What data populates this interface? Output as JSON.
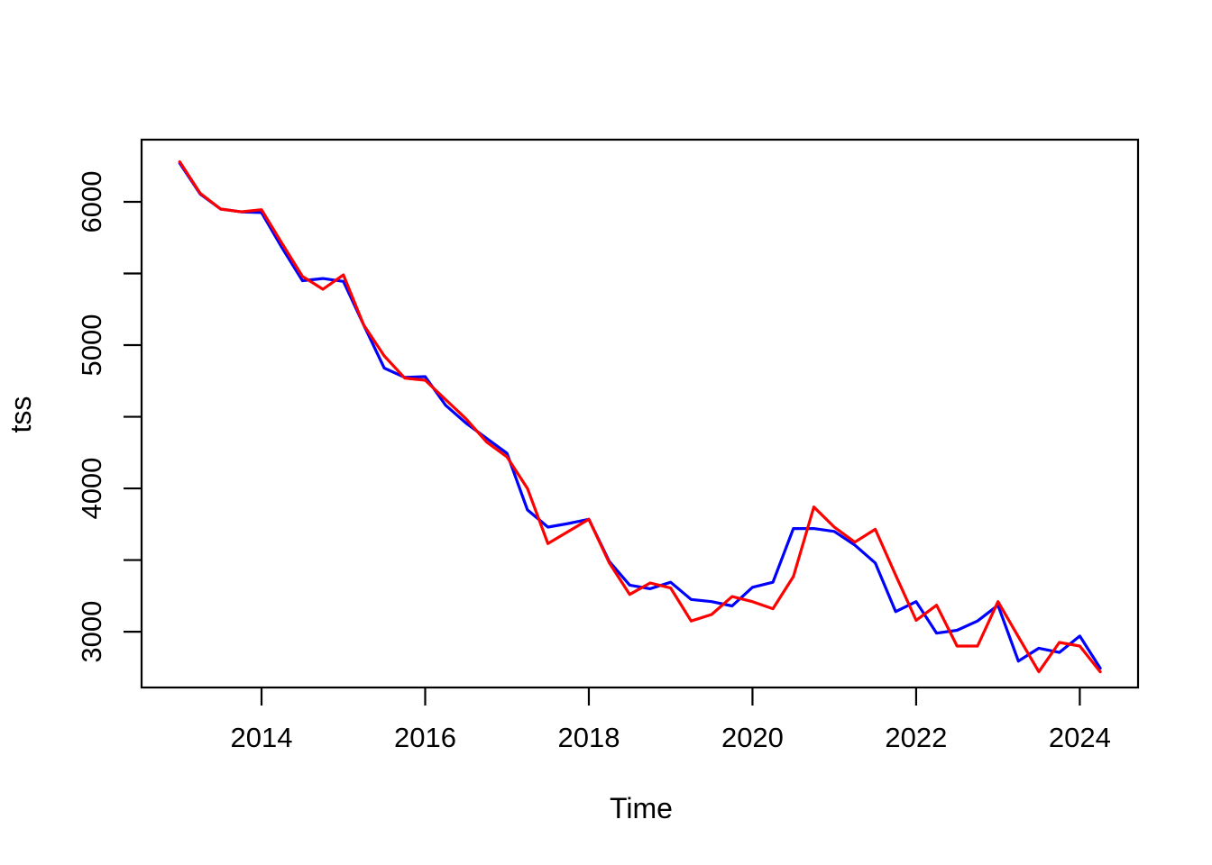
{
  "chart_data": {
    "type": "line",
    "title": "",
    "xlabel": "Time",
    "ylabel": "tss",
    "grid": false,
    "legend": "none",
    "xlim": [
      2012.534,
      2024.712
    ],
    "ylim": [
      2610.7,
      6433.9
    ],
    "x_ticks": [
      2014,
      2016,
      2018,
      2020,
      2022,
      2024
    ],
    "y_ticks": [
      3000,
      3500,
      4000,
      4500,
      5000,
      5500,
      6000
    ],
    "y_tick_labels": [
      3000,
      4000,
      5000,
      6000
    ],
    "x": [
      2013.0,
      2013.25,
      2013.5,
      2013.75,
      2014.0,
      2014.25,
      2014.5,
      2014.75,
      2015.0,
      2015.25,
      2015.5,
      2015.75,
      2016.0,
      2016.25,
      2016.5,
      2016.75,
      2017.0,
      2017.25,
      2017.5,
      2017.75,
      2018.0,
      2018.25,
      2018.5,
      2018.75,
      2019.0,
      2019.25,
      2019.5,
      2019.75,
      2020.0,
      2020.25,
      2020.5,
      2020.75,
      2021.0,
      2021.25,
      2021.5,
      2021.75,
      2022.0,
      2022.25,
      2022.5,
      2022.75,
      2023.0,
      2023.25,
      2023.5,
      2023.75,
      2024.0,
      2024.25
    ],
    "series": [
      {
        "name": "series-blue",
        "color": "#0000FF",
        "values": [
          6270,
          6055,
          5950,
          5930,
          5925,
          5680,
          5450,
          5465,
          5445,
          5140,
          4840,
          4775,
          4780,
          4580,
          4455,
          4350,
          4245,
          3850,
          3730,
          3755,
          3785,
          3490,
          3325,
          3300,
          3345,
          3225,
          3210,
          3180,
          3310,
          3345,
          3720,
          3720,
          3700,
          3605,
          3480,
          3140,
          3210,
          2990,
          3010,
          3075,
          3185,
          2795,
          2885,
          2855,
          2970,
          2745
        ]
      },
      {
        "name": "series-red",
        "color": "#FF0000",
        "values": [
          6280,
          6060,
          5950,
          5930,
          5945,
          5710,
          5480,
          5390,
          5490,
          5140,
          4925,
          4770,
          4755,
          4620,
          4485,
          4325,
          4220,
          4000,
          3615,
          3700,
          3785,
          3480,
          3260,
          3340,
          3305,
          3075,
          3120,
          3245,
          3210,
          3160,
          3385,
          3870,
          3730,
          3625,
          3715,
          3395,
          3080,
          3185,
          2900,
          2900,
          3210,
          2965,
          2720,
          2925,
          2900,
          2720
        ]
      }
    ],
    "axis_color": "#000000"
  }
}
